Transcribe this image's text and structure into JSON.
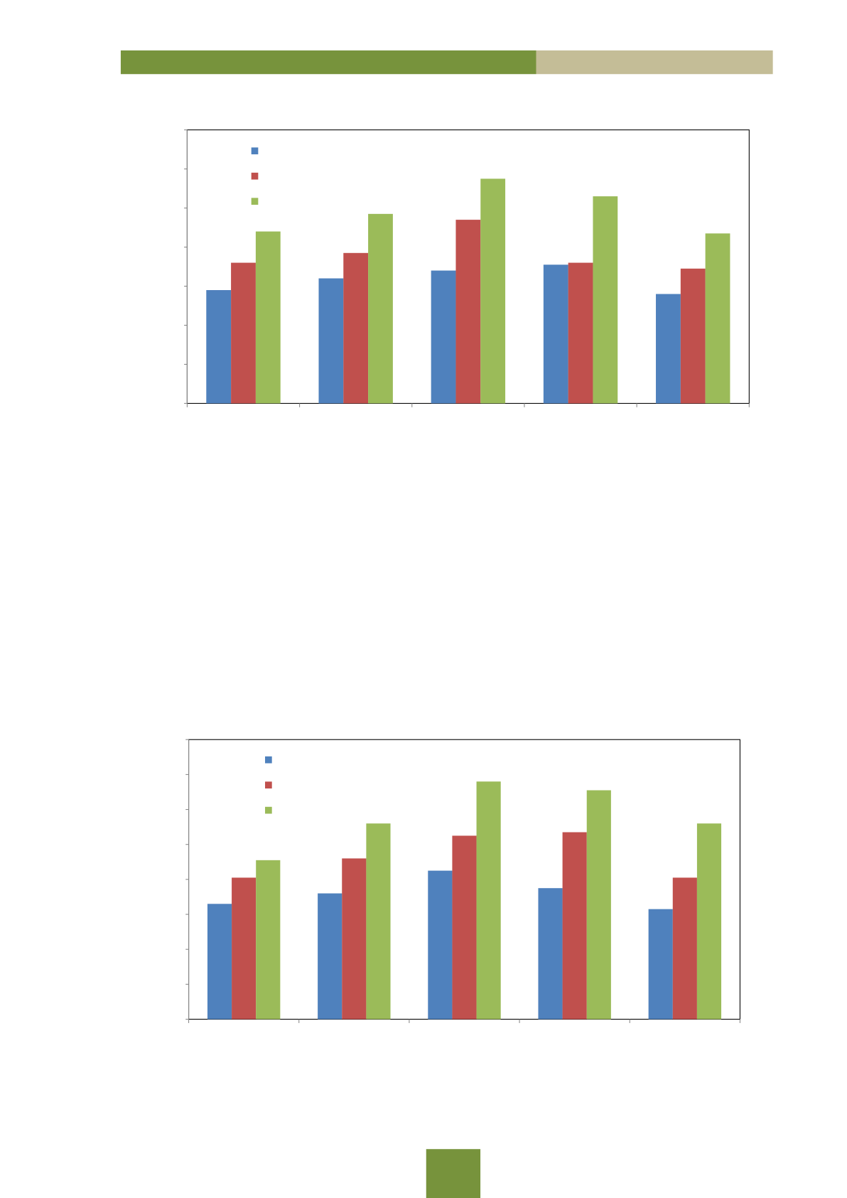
{
  "chart_data": [
    {
      "type": "bar",
      "categories": [
        null,
        null,
        null,
        null,
        null
      ],
      "series": [
        {
          "color": "#4f81bd",
          "values": [
            2.9,
            3.2,
            3.4,
            3.55,
            2.8
          ]
        },
        {
          "color": "#c0504d",
          "values": [
            3.6,
            3.85,
            4.7,
            3.6,
            3.45
          ]
        },
        {
          "color": "#9bbb59",
          "values": [
            4.4,
            4.85,
            5.75,
            5.3,
            4.35
          ]
        }
      ],
      "ylim": [
        0,
        7
      ],
      "yticks": [
        0,
        1,
        2,
        3,
        4,
        5,
        6,
        7
      ],
      "grid": false,
      "legend": "top-left"
    },
    {
      "type": "bar",
      "categories": [
        null,
        null,
        null,
        null,
        null
      ],
      "series": [
        {
          "color": "#4f81bd",
          "values": [
            3.3,
            3.6,
            4.25,
            3.75,
            3.15
          ]
        },
        {
          "color": "#c0504d",
          "values": [
            4.05,
            4.6,
            5.25,
            5.35,
            4.05
          ]
        },
        {
          "color": "#9bbb59",
          "values": [
            4.55,
            5.6,
            6.8,
            6.55,
            5.6
          ]
        }
      ],
      "ylim": [
        0,
        8
      ],
      "yticks": [
        0,
        1,
        2,
        3,
        4,
        5,
        6,
        7,
        8
      ],
      "grid": false,
      "legend": "top-left"
    }
  ]
}
